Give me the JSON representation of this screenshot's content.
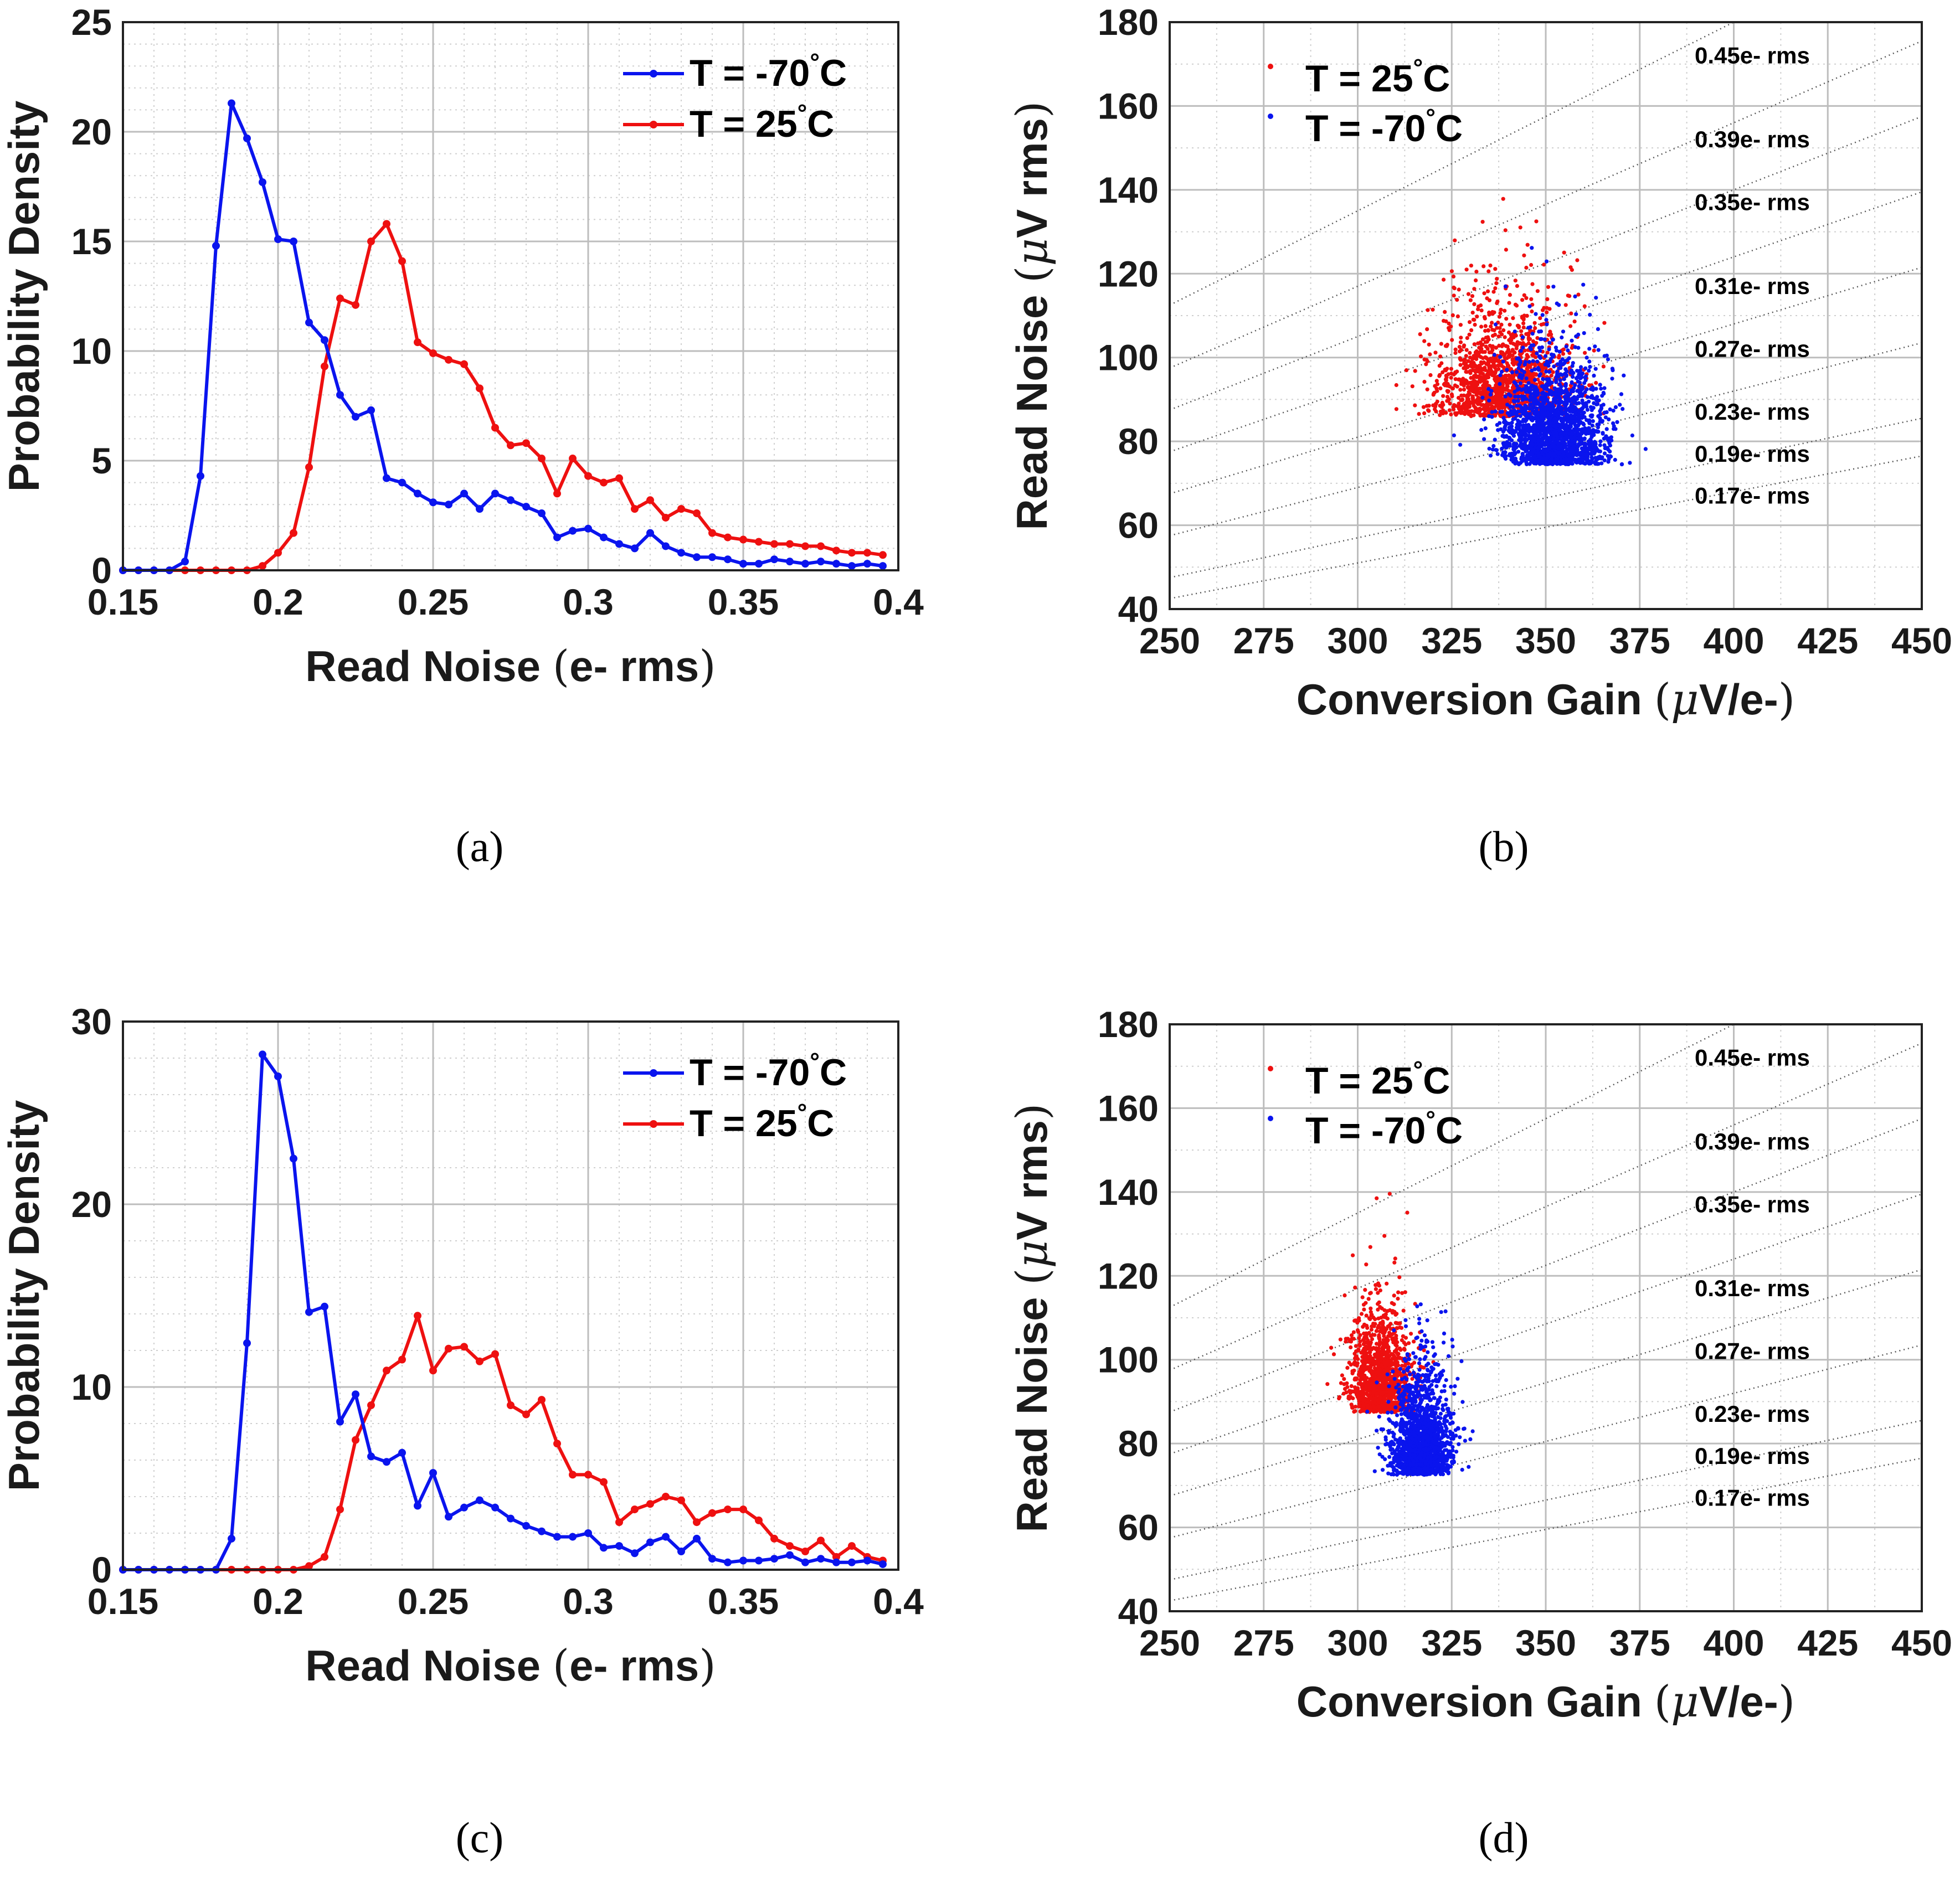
{
  "captions": {
    "a": "(a)",
    "b": "(b)",
    "c": "(c)",
    "d": "(d)"
  },
  "colors": {
    "blue": "#0a14ee",
    "red": "#ee1010"
  },
  "chart_data": [
    {
      "id": "a",
      "type": "line",
      "xlabel": "Read Noise (e- rms)",
      "ylabel": "Probability Density",
      "xlim": [
        0.15,
        0.4
      ],
      "ylim": [
        0,
        25
      ],
      "xticks": [
        0.15,
        0.2,
        0.25,
        0.3,
        0.35,
        0.4
      ],
      "xtick_labels": [
        "0.15",
        "0.2",
        "0.25",
        "0.3",
        "0.35",
        "0.4"
      ],
      "yticks": [
        0,
        5,
        10,
        15,
        20,
        25
      ],
      "ytick_labels": [
        "0",
        "5",
        "10",
        "15",
        "20",
        "25"
      ],
      "x": [
        0.15,
        0.155,
        0.16,
        0.165,
        0.17,
        0.175,
        0.18,
        0.185,
        0.19,
        0.195,
        0.2,
        0.205,
        0.21,
        0.215,
        0.22,
        0.225,
        0.23,
        0.235,
        0.24,
        0.245,
        0.25,
        0.255,
        0.26,
        0.265,
        0.27,
        0.275,
        0.28,
        0.285,
        0.29,
        0.295,
        0.3,
        0.305,
        0.31,
        0.315,
        0.32,
        0.325,
        0.33,
        0.335,
        0.34,
        0.345,
        0.35,
        0.355,
        0.36,
        0.365,
        0.37,
        0.375,
        0.38,
        0.385,
        0.39,
        0.395
      ],
      "series": [
        {
          "name": "T = -70°C",
          "color": "blue",
          "values": [
            0,
            0,
            0,
            0,
            0.4,
            4.3,
            14.8,
            21.3,
            19.7,
            17.7,
            15.1,
            15.0,
            11.3,
            10.5,
            8.0,
            7.0,
            7.3,
            4.2,
            4.0,
            3.5,
            3.1,
            3.0,
            3.5,
            2.8,
            3.5,
            3.2,
            2.9,
            2.6,
            1.5,
            1.8,
            1.9,
            1.5,
            1.2,
            1.0,
            1.7,
            1.1,
            0.8,
            0.6,
            0.6,
            0.5,
            0.3,
            0.3,
            0.5,
            0.4,
            0.3,
            0.4,
            0.3,
            0.2,
            0.3,
            0.2
          ]
        },
        {
          "name": "T = 25°C",
          "color": "red",
          "values": [
            0,
            0,
            0,
            0,
            0,
            0,
            0,
            0,
            0,
            0.2,
            0.8,
            1.7,
            4.7,
            9.3,
            12.4,
            12.1,
            15.0,
            15.8,
            14.1,
            10.4,
            9.9,
            9.6,
            9.4,
            8.3,
            6.5,
            5.7,
            5.8,
            5.1,
            3.5,
            5.1,
            4.3,
            4.0,
            4.2,
            2.8,
            3.2,
            2.4,
            2.8,
            2.6,
            1.7,
            1.5,
            1.4,
            1.3,
            1.2,
            1.2,
            1.1,
            1.1,
            0.9,
            0.8,
            0.8,
            0.7
          ]
        }
      ],
      "legend": [
        "T = -70°C",
        "T = 25°C"
      ]
    },
    {
      "id": "b",
      "type": "scatter",
      "xlabel": "Conversion Gain (μV/e-)",
      "ylabel": "Read Noise (μV rms)",
      "xlim": [
        250,
        450
      ],
      "ylim": [
        40,
        180
      ],
      "xticks": [
        250,
        275,
        300,
        325,
        350,
        375,
        400,
        425,
        450
      ],
      "xtick_labels": [
        "250",
        "275",
        "300",
        "325",
        "350",
        "375",
        "400",
        "425",
        "450"
      ],
      "yticks": [
        40,
        60,
        80,
        100,
        120,
        140,
        160,
        180
      ],
      "ytick_labels": [
        "40",
        "60",
        "80",
        "100",
        "120",
        "140",
        "160",
        "180"
      ],
      "legend": [
        "T = 25°C",
        "T = -70°C"
      ],
      "iso_lines": [
        0.45,
        0.39,
        0.35,
        0.31,
        0.27,
        0.23,
        0.19,
        0.17
      ],
      "iso_labels": [
        "0.45e- rms",
        "0.39e- rms",
        "0.35e- rms",
        "0.31e- rms",
        "0.27e- rms",
        "0.23e- rms",
        "0.19e- rms",
        "0.17e- rms"
      ],
      "series": [
        {
          "name": "T = 25°C",
          "color": "red",
          "center": [
            338,
            92
          ],
          "spread": [
            9,
            11
          ],
          "n": 1400
        },
        {
          "name": "T = -70°C",
          "color": "blue",
          "center": [
            352,
            80
          ],
          "spread": [
            7,
            10
          ],
          "n": 1900
        }
      ]
    },
    {
      "id": "c",
      "type": "line",
      "xlabel": "Read Noise (e- rms)",
      "ylabel": "Probability Density",
      "xlim": [
        0.15,
        0.4
      ],
      "ylim": [
        0,
        30
      ],
      "xticks": [
        0.15,
        0.2,
        0.25,
        0.3,
        0.35,
        0.4
      ],
      "xtick_labels": [
        "0.15",
        "0.2",
        "0.25",
        "0.3",
        "0.35",
        "0.4"
      ],
      "yticks": [
        0,
        10,
        20,
        30
      ],
      "ytick_labels": [
        "0",
        "10",
        "20",
        "30"
      ],
      "x": [
        0.15,
        0.155,
        0.16,
        0.165,
        0.17,
        0.175,
        0.18,
        0.185,
        0.19,
        0.195,
        0.2,
        0.205,
        0.21,
        0.215,
        0.22,
        0.225,
        0.23,
        0.235,
        0.24,
        0.245,
        0.25,
        0.255,
        0.26,
        0.265,
        0.27,
        0.275,
        0.28,
        0.285,
        0.29,
        0.295,
        0.3,
        0.305,
        0.31,
        0.315,
        0.32,
        0.325,
        0.33,
        0.335,
        0.34,
        0.345,
        0.35,
        0.355,
        0.36,
        0.365,
        0.37,
        0.375,
        0.38,
        0.385,
        0.39,
        0.395
      ],
      "series": [
        {
          "name": "T = -70°C",
          "color": "blue",
          "values": [
            0,
            0,
            0,
            0,
            0,
            0,
            0,
            1.7,
            12.4,
            28.2,
            27.0,
            22.5,
            14.1,
            14.4,
            8.1,
            9.6,
            6.2,
            5.9,
            6.4,
            3.5,
            5.3,
            2.9,
            3.4,
            3.8,
            3.4,
            2.8,
            2.4,
            2.1,
            1.8,
            1.8,
            2.0,
            1.2,
            1.3,
            0.9,
            1.5,
            1.8,
            1.0,
            1.7,
            0.6,
            0.4,
            0.5,
            0.5,
            0.6,
            0.8,
            0.4,
            0.6,
            0.4,
            0.4,
            0.5,
            0.3
          ]
        },
        {
          "name": "T = 25°C",
          "color": "red",
          "values": [
            0,
            0,
            0,
            0,
            0,
            0,
            0,
            0,
            0,
            0,
            0,
            0,
            0.2,
            0.7,
            3.3,
            7.1,
            9.0,
            10.9,
            11.5,
            13.9,
            10.9,
            12.1,
            12.2,
            11.4,
            11.8,
            9.0,
            8.5,
            9.3,
            6.9,
            5.2,
            5.2,
            4.8,
            2.6,
            3.3,
            3.6,
            4.0,
            3.8,
            2.6,
            3.1,
            3.3,
            3.3,
            2.7,
            1.7,
            1.3,
            1.0,
            1.6,
            0.7,
            1.3,
            0.7,
            0.5
          ]
        }
      ],
      "legend": [
        "T = -70°C",
        "T = 25°C"
      ]
    },
    {
      "id": "d",
      "type": "scatter",
      "xlabel": "Conversion Gain (μV/e-)",
      "ylabel": "Read Noise (μV rms)",
      "xlim": [
        250,
        450
      ],
      "ylim": [
        40,
        180
      ],
      "xticks": [
        250,
        275,
        300,
        325,
        350,
        375,
        400,
        425,
        450
      ],
      "xtick_labels": [
        "250",
        "275",
        "300",
        "325",
        "350",
        "375",
        "400",
        "425",
        "450"
      ],
      "yticks": [
        40,
        60,
        80,
        100,
        120,
        140,
        160,
        180
      ],
      "ytick_labels": [
        "40",
        "60",
        "80",
        "100",
        "120",
        "140",
        "160",
        "180"
      ],
      "legend": [
        "T = 25°C",
        "T = -70°C"
      ],
      "iso_lines": [
        0.45,
        0.39,
        0.35,
        0.31,
        0.27,
        0.23,
        0.19,
        0.17
      ],
      "iso_labels": [
        "0.45e- rms",
        "0.39e- rms",
        "0.35e- rms",
        "0.31e- rms",
        "0.27e- rms",
        "0.23e- rms",
        "0.19e- rms",
        "0.17e- rms"
      ],
      "series": [
        {
          "name": "T = 25°C",
          "color": "red",
          "center": [
            306,
            93
          ],
          "spread": [
            4,
            10
          ],
          "n": 1200
        },
        {
          "name": "T = -70°C",
          "color": "blue",
          "center": [
            317,
            78
          ],
          "spread": [
            4,
            10
          ],
          "n": 1600
        }
      ]
    }
  ]
}
